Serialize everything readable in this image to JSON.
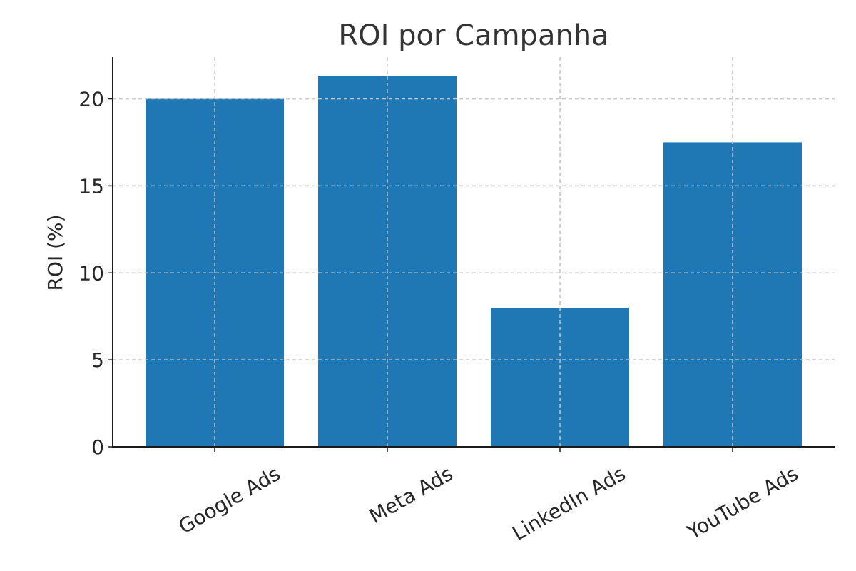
{
  "chart_data": {
    "type": "bar",
    "title": "ROI por Campanha",
    "xlabel": "",
    "ylabel": "ROI (%)",
    "categories": [
      "Google Ads",
      "Meta Ads",
      "LinkedIn Ads",
      "YouTube Ads"
    ],
    "values": [
      20.0,
      21.3,
      8.0,
      17.5
    ],
    "yticks": [
      0,
      5,
      10,
      15,
      20
    ],
    "ylim": [
      0,
      22.4
    ],
    "grid": true,
    "bar_color": "#1f77b4"
  }
}
